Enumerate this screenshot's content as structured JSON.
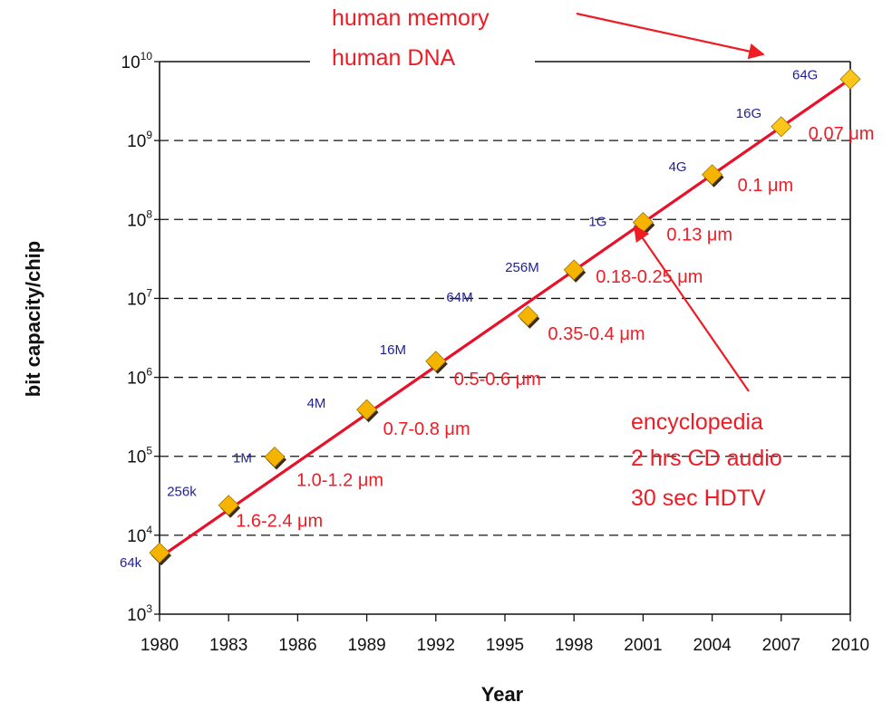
{
  "chart_data": {
    "type": "scatter",
    "xlabel": "Year",
    "ylabel": "bit capacity/chip",
    "x_ticks": [
      "1980",
      "1983",
      "1986",
      "1989",
      "1992",
      "1995",
      "1998",
      "2001",
      "2004",
      "2007",
      "2010"
    ],
    "xlim": [
      1980,
      2010
    ],
    "y_scale": "log",
    "ylim": [
      1000,
      10000000000
    ],
    "y_ticks": [
      {
        "base": "10",
        "exp": "3"
      },
      {
        "base": "10",
        "exp": "4"
      },
      {
        "base": "10",
        "exp": "5"
      },
      {
        "base": "10",
        "exp": "6"
      },
      {
        "base": "10",
        "exp": "7"
      },
      {
        "base": "10",
        "exp": "8"
      },
      {
        "base": "10",
        "exp": "9"
      },
      {
        "base": "10",
        "exp": "10"
      }
    ],
    "grid": "dashed horizontal",
    "points": [
      {
        "x": 1980,
        "y": 6000,
        "label": "64k",
        "node": "",
        "diamond": "dark"
      },
      {
        "x": 1983,
        "y": 24000,
        "label": "256k",
        "node": "1.6-2.4 μm",
        "diamond": "dark"
      },
      {
        "x": 1985,
        "y": 98000,
        "label": "1M",
        "node": "1.0-1.2 μm",
        "diamond": "dark"
      },
      {
        "x": 1989,
        "y": 390000,
        "label": "4M",
        "node": "0.7-0.8 μm",
        "diamond": "dark"
      },
      {
        "x": 1992,
        "y": 1600000,
        "label": "16M",
        "node": "0.5-0.6 μm",
        "diamond": "dark"
      },
      {
        "x": 1996,
        "y": 6000000,
        "label": "64M",
        "node": "0.35-0.4 μm",
        "diamond": "dark"
      },
      {
        "x": 1998,
        "y": 23000000,
        "label": "256M",
        "node": "0.18-0.25 μm",
        "diamond": "dark"
      },
      {
        "x": 2001,
        "y": 92000000,
        "label": "1G",
        "node": "0.13 μm",
        "diamond": "dark"
      },
      {
        "x": 2004,
        "y": 370000000,
        "label": "4G",
        "node": "0.1 μm",
        "diamond": "dark"
      },
      {
        "x": 2007,
        "y": 1500000000,
        "label": "16G",
        "node": "0.07 μm",
        "diamond": "light"
      },
      {
        "x": 2010,
        "y": 6000000000,
        "label": "64G",
        "node": "",
        "diamond": "light"
      }
    ],
    "trend_line": {
      "from": {
        "x": 1980,
        "y": 5200
      },
      "to": {
        "x": 2010,
        "y": 6000000000
      }
    },
    "annotations": [
      {
        "lines": [
          "human memory",
          "human DNA"
        ]
      },
      {
        "lines": [
          "encyclopedia",
          "2 hrs CD audio",
          "30 sec HDTV"
        ]
      }
    ],
    "colors": {
      "trend": "#e8102a",
      "annotation": "#ee1c25",
      "capacity_label": "#1f1f8f",
      "diamond_fill": "#f5b400",
      "diamond_fill_light": "#ffc61a",
      "diamond_shadow": "#3b2a14"
    }
  }
}
